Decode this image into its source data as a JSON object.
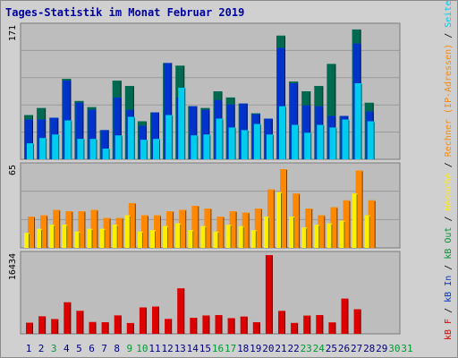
{
  "chart_data": [
    {
      "type": "bar",
      "title": "Tages-Statistik im Monat Februar 2019",
      "ymax_label": "171",
      "legend": [
        "Anfragen",
        "Dateien",
        "Seiten"
      ],
      "legend_colors": [
        "#006a50",
        "#0033cc",
        "#00ccee"
      ],
      "series": [
        {
          "name": "Anfragen",
          "color": "#006a50",
          "values": [
            50,
            58,
            47,
            91,
            66,
            59,
            33,
            89,
            83,
            43,
            53,
            109,
            106,
            60,
            58,
            77,
            70,
            63,
            52,
            46,
            140,
            88,
            77,
            83,
            108,
            49,
            147,
            64,
            0,
            0,
            0
          ]
        },
        {
          "name": "Dateien",
          "color": "#0033cc",
          "values": [
            45,
            45,
            47,
            89,
            64,
            56,
            33,
            70,
            56,
            38,
            53,
            109,
            70,
            60,
            56,
            67,
            62,
            63,
            51,
            46,
            126,
            86,
            61,
            60,
            49,
            49,
            131,
            54,
            0,
            0,
            0
          ]
        },
        {
          "name": "Seiten",
          "color": "#00ccee",
          "values": [
            18,
            24,
            28,
            44,
            23,
            23,
            12,
            27,
            48,
            22,
            23,
            50,
            81,
            27,
            28,
            46,
            36,
            33,
            40,
            28,
            60,
            39,
            30,
            39,
            36,
            45,
            86,
            43,
            0,
            0,
            0
          ]
        }
      ]
    },
    {
      "type": "bar",
      "ymax_label": "65",
      "legend": [
        "Rechner (IP-Adressen)",
        "Besuche"
      ],
      "legend_colors": [
        "#ff8800",
        "#ffee00"
      ],
      "series": [
        {
          "name": "Rechner (IP-Adressen)",
          "color": "#ff8800",
          "values": [
            23,
            24,
            28,
            27,
            27,
            28,
            22,
            22,
            33,
            24,
            24,
            27,
            28,
            31,
            29,
            23,
            27,
            26,
            29,
            43,
            58,
            40,
            29,
            24,
            30,
            35,
            57,
            35,
            0,
            0,
            0
          ]
        },
        {
          "name": "Besuche",
          "color": "#ffee00",
          "values": [
            11,
            14,
            17,
            17,
            12,
            14,
            14,
            17,
            24,
            12,
            13,
            16,
            18,
            13,
            16,
            12,
            17,
            16,
            13,
            23,
            41,
            23,
            15,
            17,
            18,
            20,
            40,
            24,
            0,
            0,
            0
          ]
        }
      ]
    },
    {
      "type": "bar",
      "ymax_label": "16434",
      "legend": [
        "kB F",
        "kB In",
        "kB Out"
      ],
      "legend_colors": [
        "#dd0000",
        "#0033cc",
        "#009933"
      ],
      "series": [
        {
          "name": "kB F",
          "color": "#dd0000",
          "values": [
            2310,
            3650,
            3080,
            6570,
            4790,
            2450,
            2420,
            3840,
            2250,
            5510,
            5680,
            3100,
            9470,
            3330,
            3830,
            3910,
            3270,
            3590,
            2430,
            16434,
            4780,
            2260,
            3790,
            3910,
            2370,
            7330,
            5120,
            0,
            0,
            0,
            0
          ]
        }
      ]
    }
  ],
  "x_labels": [
    "1",
    "2",
    "3",
    "4",
    "5",
    "6",
    "7",
    "8",
    "9",
    "10",
    "11",
    "12",
    "13",
    "14",
    "15",
    "16",
    "17",
    "18",
    "19",
    "20",
    "21",
    "22",
    "23",
    "24",
    "25",
    "26",
    "27",
    "28",
    "29",
    "30",
    "31"
  ],
  "weekend_days": [
    3,
    9,
    10,
    16,
    17,
    23,
    24,
    30,
    31
  ],
  "colors": {
    "weekday": "#000080",
    "weekend": "#009933",
    "grid": "#999999",
    "plot_bg": "#bdbdbd"
  }
}
